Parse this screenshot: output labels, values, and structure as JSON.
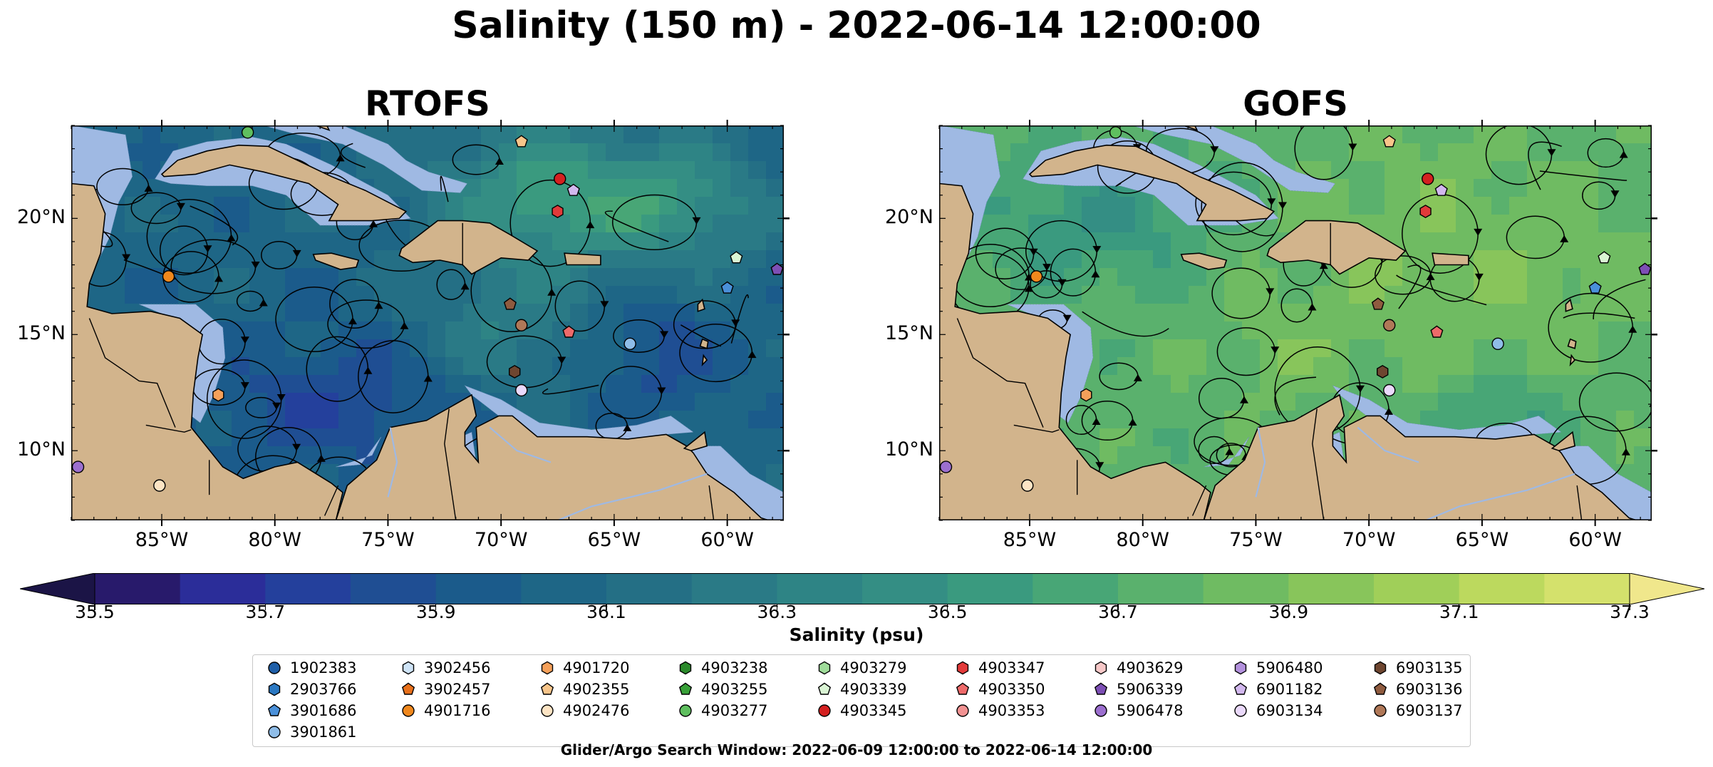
{
  "figure": {
    "title": "Salinity (150 m) - 2022-06-14 12:00:00",
    "footer": "Glider/Argo Search Window: 2022-06-09 12:00:00 to 2022-06-14 12:00:00"
  },
  "panels": [
    {
      "title": "RTOFS",
      "model": "rtofs"
    },
    {
      "title": "GOFS",
      "model": "gofs"
    }
  ],
  "map": {
    "lon_range": [
      -89,
      -57.5
    ],
    "lat_range": [
      7,
      24
    ],
    "lon_ticks": [
      {
        "value": -85,
        "label": "85°W"
      },
      {
        "value": -80,
        "label": "80°W"
      },
      {
        "value": -75,
        "label": "75°W"
      },
      {
        "value": -70,
        "label": "70°W"
      },
      {
        "value": -65,
        "label": "65°W"
      },
      {
        "value": -60,
        "label": "60°W"
      }
    ],
    "lat_ticks": [
      {
        "value": 20,
        "label": "20°N"
      },
      {
        "value": 15,
        "label": "15°N"
      },
      {
        "value": 10,
        "label": "10°N"
      }
    ],
    "colors": {
      "land": "#d2b48c",
      "shelf": "#9fb9e3",
      "border": "#000000",
      "streamline": "#000000"
    }
  },
  "colorbar": {
    "label": "Salinity (psu)",
    "min": 35.5,
    "max": 37.3,
    "step": 0.1,
    "extend": "both",
    "ticks": [
      "35.5",
      "35.7",
      "35.9",
      "36.1",
      "36.3",
      "36.5",
      "36.7",
      "36.9",
      "37.1",
      "37.3"
    ],
    "colormap": [
      "#281a6b",
      "#2b2d99",
      "#24409c",
      "#1f4e93",
      "#1b5b8b",
      "#1e6686",
      "#246f85",
      "#2a7a86",
      "#2e8485",
      "#348e84",
      "#3a9a7f",
      "#48a676",
      "#5ab16d",
      "#6fbb62",
      "#88c55b",
      "#a0cf59",
      "#bcd95e",
      "#d4e16c"
    ],
    "under_color": "#1b1446",
    "over_color": "#f0e78c"
  },
  "legend": {
    "items": [
      {
        "id": "1902383",
        "marker": "circle",
        "color": "#1f5fa8"
      },
      {
        "id": "2903766",
        "marker": "hexagon",
        "color": "#2a78c2"
      },
      {
        "id": "3901686",
        "marker": "pentagon",
        "color": "#4a90d9"
      },
      {
        "id": "3901861",
        "marker": "circle",
        "color": "#8fbde8"
      },
      {
        "id": "3902456",
        "marker": "hexagon",
        "color": "#cfe4f7"
      },
      {
        "id": "3902457",
        "marker": "pentagon",
        "color": "#e8701a"
      },
      {
        "id": "4901716",
        "marker": "circle",
        "color": "#f0881d"
      },
      {
        "id": "4901720",
        "marker": "hexagon",
        "color": "#f5a05a"
      },
      {
        "id": "4902355",
        "marker": "pentagon",
        "color": "#f8c58a"
      },
      {
        "id": "4902476",
        "marker": "circle",
        "color": "#fde4c4"
      },
      {
        "id": "4903238",
        "marker": "hexagon",
        "color": "#2b8a2b"
      },
      {
        "id": "4903255",
        "marker": "pentagon",
        "color": "#38a038"
      },
      {
        "id": "4903277",
        "marker": "circle",
        "color": "#5fbf5f"
      },
      {
        "id": "4903279",
        "marker": "hexagon",
        "color": "#9fdc9a"
      },
      {
        "id": "4903339",
        "marker": "pentagon",
        "color": "#daf5d4"
      },
      {
        "id": "4903345",
        "marker": "circle",
        "color": "#d42020"
      },
      {
        "id": "4903347",
        "marker": "hexagon",
        "color": "#e23a3a"
      },
      {
        "id": "4903350",
        "marker": "pentagon",
        "color": "#ee6a6a"
      },
      {
        "id": "4903353",
        "marker": "circle",
        "color": "#f29292"
      },
      {
        "id": "4903629",
        "marker": "hexagon",
        "color": "#f7c8c8"
      },
      {
        "id": "5906339",
        "marker": "pentagon",
        "color": "#7d4fb5"
      },
      {
        "id": "5906478",
        "marker": "circle",
        "color": "#9c6fcf"
      },
      {
        "id": "5906480",
        "marker": "hexagon",
        "color": "#b391dd"
      },
      {
        "id": "6901182",
        "marker": "pentagon",
        "color": "#d2b8ee"
      },
      {
        "id": "6903134",
        "marker": "circle",
        "color": "#ead9fb"
      },
      {
        "id": "6903135",
        "marker": "hexagon",
        "color": "#6e4630"
      },
      {
        "id": "6903136",
        "marker": "pentagon",
        "color": "#8f5b3f"
      },
      {
        "id": "6903137",
        "marker": "circle",
        "color": "#b07858"
      }
    ]
  },
  "platforms": [
    {
      "id": "4903277",
      "lon": -81.2,
      "lat": 23.7
    },
    {
      "id": "4902355",
      "lon": -69.1,
      "lat": 23.3
    },
    {
      "id": "4903345",
      "lon": -67.4,
      "lat": 21.7
    },
    {
      "id": "6901182",
      "lon": -66.8,
      "lat": 21.2
    },
    {
      "id": "4903347",
      "lon": -67.5,
      "lat": 20.3
    },
    {
      "id": "4903339",
      "lon": -59.6,
      "lat": 18.3
    },
    {
      "id": "5906339",
      "lon": -57.8,
      "lat": 17.8
    },
    {
      "id": "3901686",
      "lon": -60.0,
      "lat": 17.0
    },
    {
      "id": "4901716",
      "lon": -84.7,
      "lat": 17.5
    },
    {
      "id": "6903136",
      "lon": -69.6,
      "lat": 16.3
    },
    {
      "id": "6903137",
      "lon": -69.1,
      "lat": 15.4
    },
    {
      "id": "4903350",
      "lon": -67.0,
      "lat": 15.1
    },
    {
      "id": "3901861",
      "lon": -64.3,
      "lat": 14.6
    },
    {
      "id": "6903135",
      "lon": -69.4,
      "lat": 13.4
    },
    {
      "id": "6903134",
      "lon": -69.1,
      "lat": 12.6
    },
    {
      "id": "4901720",
      "lon": -82.5,
      "lat": 12.4
    },
    {
      "id": "5906478",
      "lon": -88.7,
      "lat": 9.3
    },
    {
      "id": "4902476",
      "lon": -85.1,
      "lat": 8.5
    }
  ]
}
